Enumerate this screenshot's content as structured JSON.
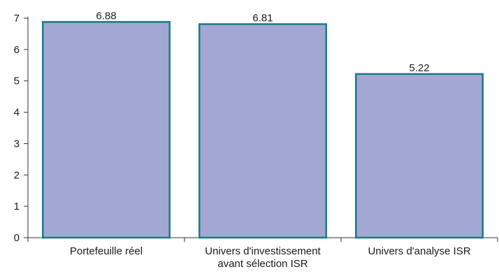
{
  "chart_data": {
    "type": "bar",
    "categories": [
      [
        "Portefeuille réel"
      ],
      [
        "Univers d'investissement",
        "avant sélection ISR"
      ],
      [
        "Univers d'analyse ISR"
      ]
    ],
    "values": [
      6.88,
      6.81,
      5.22
    ],
    "value_labels": [
      "6.88",
      "6.81",
      "5.22"
    ],
    "ylim": [
      0,
      7
    ],
    "yticks": [
      0,
      1,
      2,
      3,
      4,
      5,
      6,
      7
    ],
    "grid": false,
    "title": "",
    "xlabel": "",
    "ylabel": "",
    "colors": {
      "bar_fill": "#a3a8d3",
      "bar_stroke": "#1a7a8a"
    }
  }
}
